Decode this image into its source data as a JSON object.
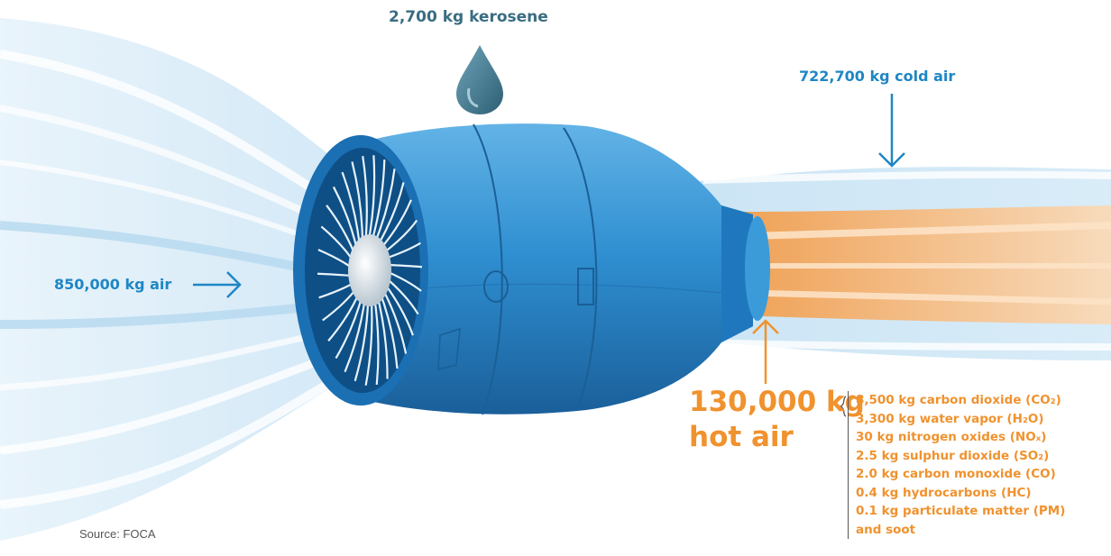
{
  "labels": {
    "kerosene": "2,700 kg kerosene",
    "cold_air": "722,700 kg cold air",
    "intake_air": "850,000 kg air",
    "hot_air_amount": "130,000 kg",
    "hot_air_word": "hot air"
  },
  "emissions": [
    "8,500 kg carbon dioxide (CO₂)",
    "3,300 kg water vapor (H₂O)",
    "30 kg nitrogen oxides (NOₓ)",
    "2.5 kg sulphur dioxide (SO₂)",
    "2.0 kg carbon monoxide (CO)",
    "0.4 kg hydrocarbons (HC)",
    "0.1 kg particulate matter (PM)",
    "and soot"
  ],
  "source": "Source: FOCA",
  "icons": [
    "fuel-drop-icon",
    "arrow-right-icon",
    "arrow-down-icon",
    "arrow-up-icon"
  ],
  "colors": {
    "blue_text": "#1f86c4",
    "orange_text": "#f0922e",
    "engine_blue": "#2f8fd1",
    "airflow_light_blue": "#cfe6f6",
    "exhaust_orange": "#f6b77a"
  }
}
